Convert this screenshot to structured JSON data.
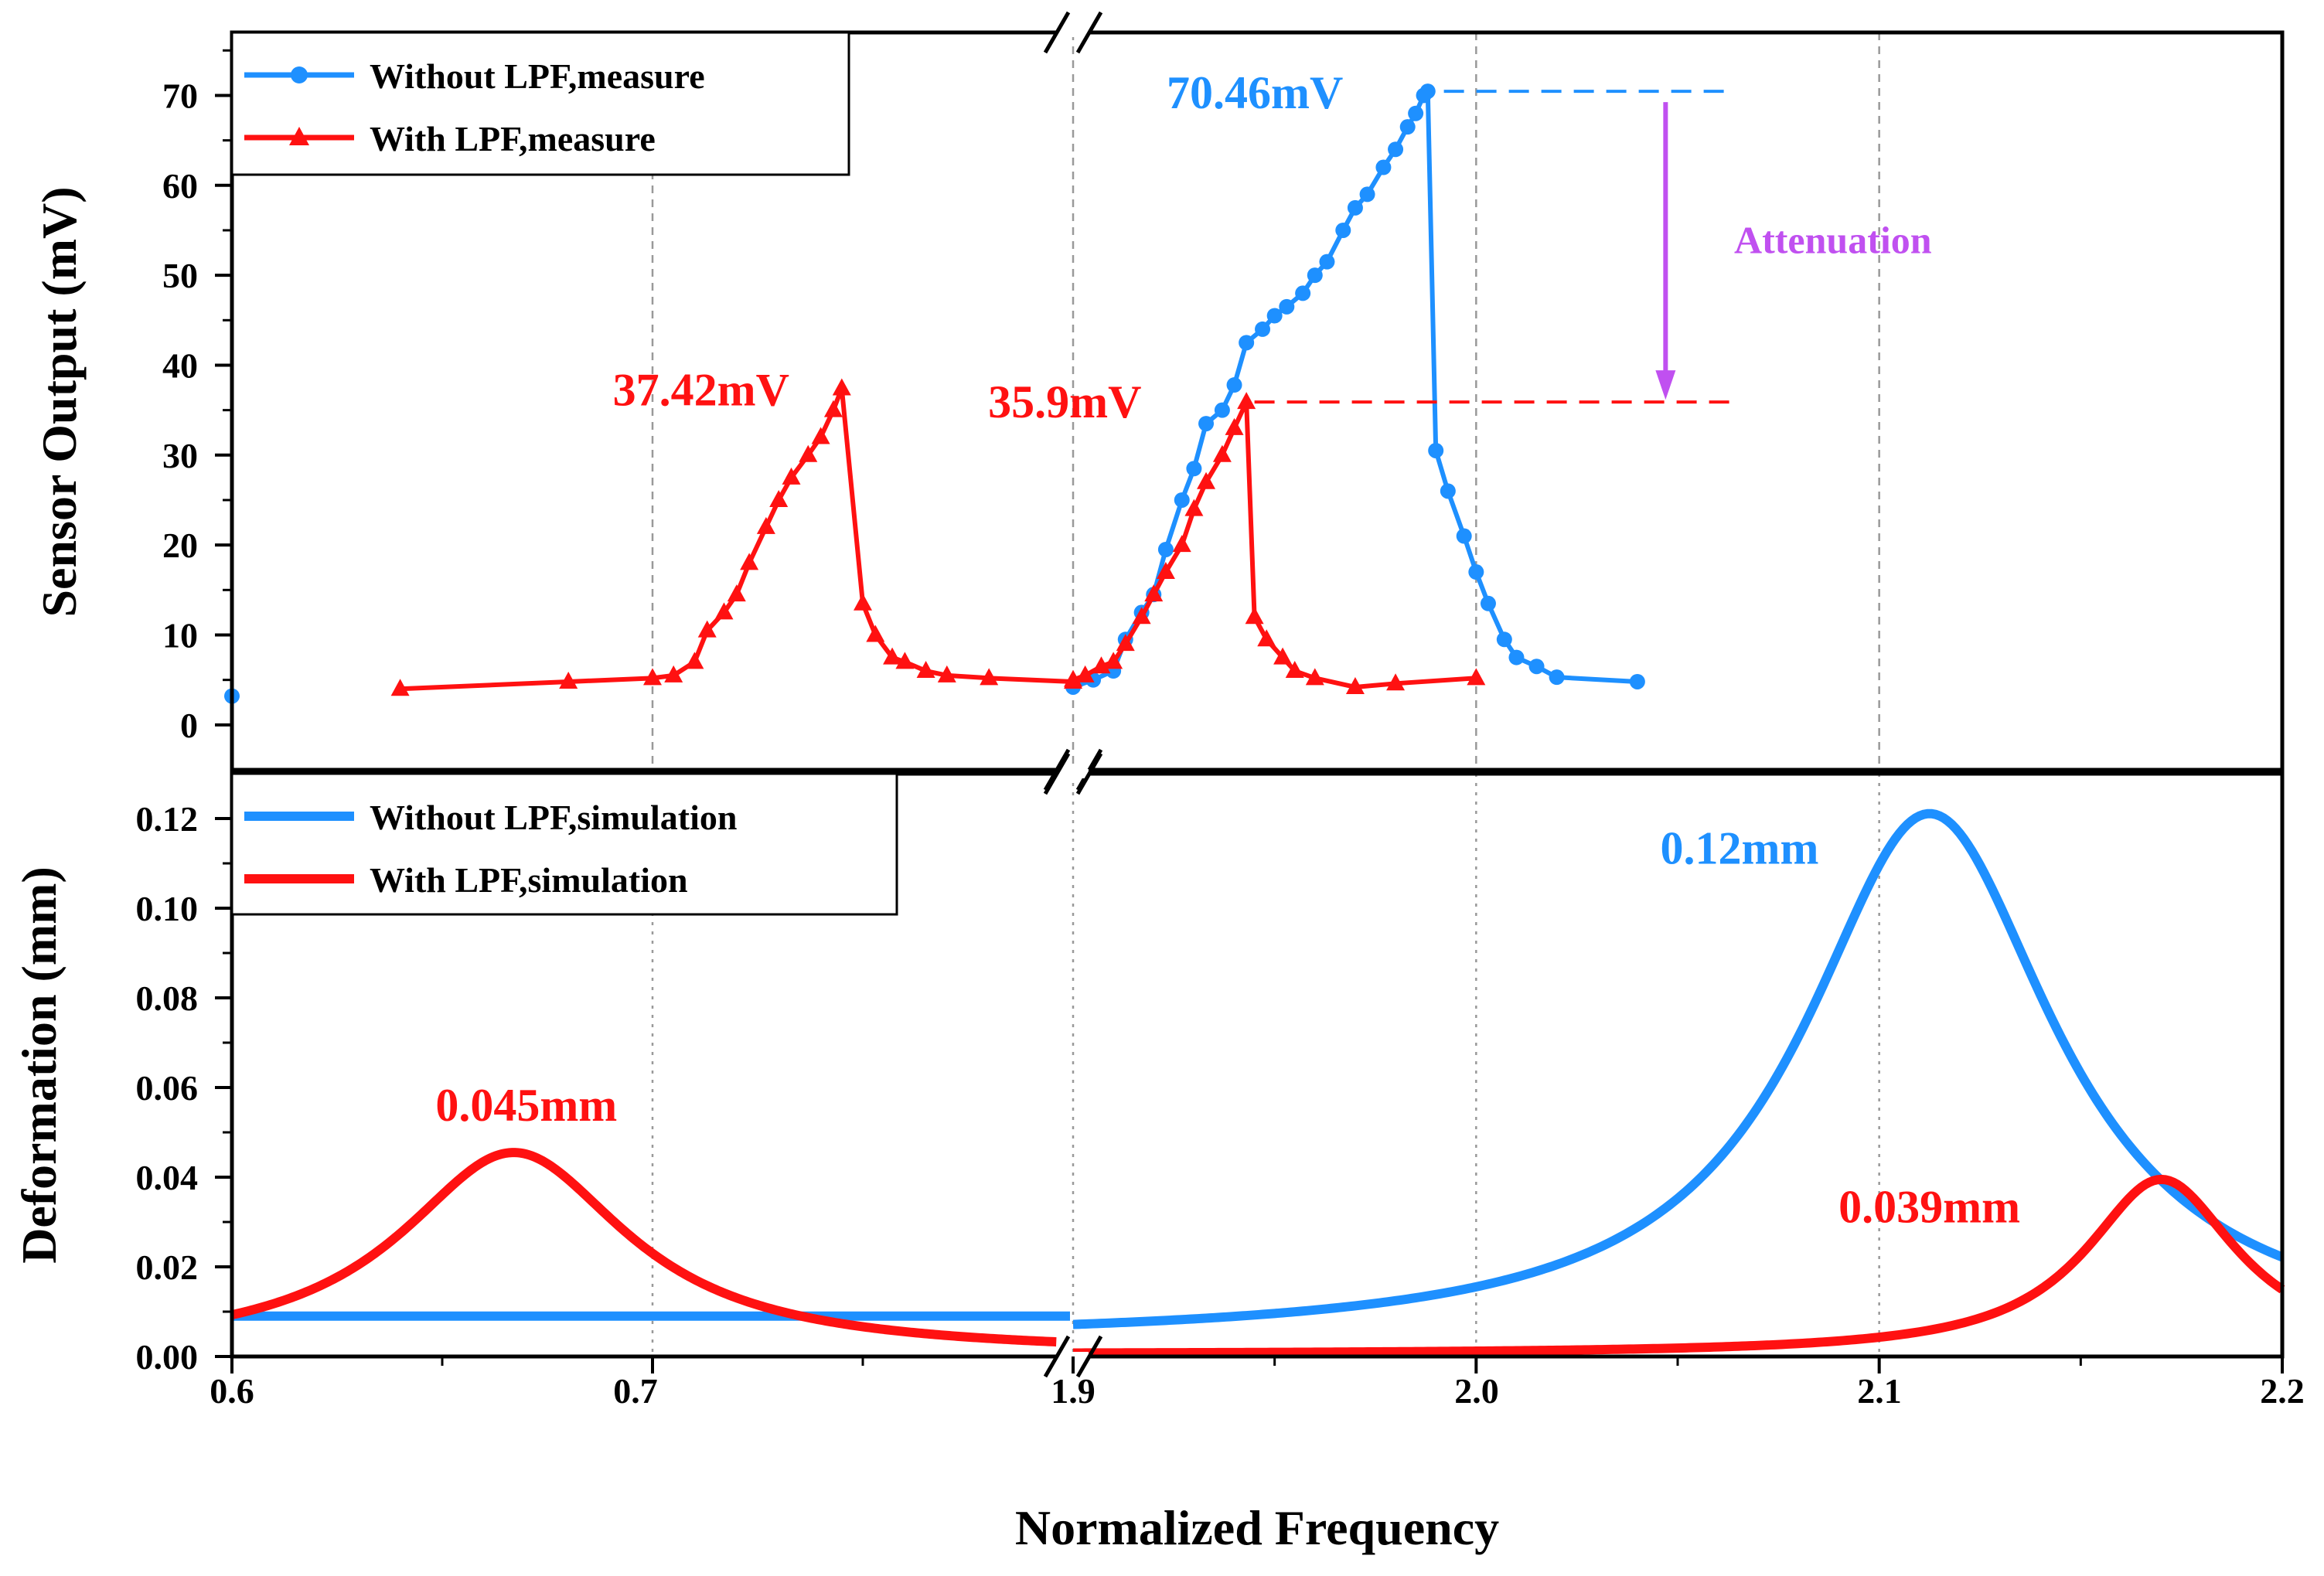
{
  "colors": {
    "blue": "#1e90ff",
    "red": "#ff1111",
    "purple": "#c050f0",
    "grid": "#999999"
  },
  "xlabel": "Normalized Frequency",
  "x_tick_labels": [
    "0.6",
    "0.7",
    "1.9",
    "2.0",
    "2.1",
    "2.2"
  ],
  "chart_data": [
    {
      "type": "line",
      "panel": "top",
      "ylabel": "Sensor Output (mV)",
      "ylim": [
        -5,
        77
      ],
      "y_ticks": [
        0,
        10,
        20,
        30,
        40,
        50,
        60,
        70
      ],
      "x_segments": [
        [
          0.6,
          0.7,
          0.8
        ],
        [
          1.9,
          2.0,
          2.1,
          2.2
        ]
      ],
      "series": [
        {
          "name": "Without LPF,measure",
          "color": "blue",
          "marker": "circle",
          "points": [
            [
              0.6,
              3.2
            ],
            [
              1.9,
              4.2
            ],
            [
              1.905,
              5.0
            ],
            [
              1.91,
              6.0
            ],
            [
              1.913,
              9.5
            ],
            [
              1.917,
              12.5
            ],
            [
              1.92,
              14.5
            ],
            [
              1.923,
              19.5
            ],
            [
              1.927,
              25.0
            ],
            [
              1.93,
              28.5
            ],
            [
              1.933,
              33.5
            ],
            [
              1.937,
              35.0
            ],
            [
              1.94,
              37.8
            ],
            [
              1.943,
              42.5
            ],
            [
              1.947,
              44.0
            ],
            [
              1.95,
              45.5
            ],
            [
              1.953,
              46.5
            ],
            [
              1.957,
              48.0
            ],
            [
              1.96,
              50.0
            ],
            [
              1.963,
              51.5
            ],
            [
              1.967,
              55.0
            ],
            [
              1.97,
              57.5
            ],
            [
              1.973,
              59.0
            ],
            [
              1.977,
              62.0
            ],
            [
              1.98,
              64.0
            ],
            [
              1.983,
              66.5
            ],
            [
              1.985,
              68.0
            ],
            [
              1.987,
              70.0
            ],
            [
              1.988,
              70.46
            ],
            [
              1.99,
              30.5
            ],
            [
              1.993,
              26.0
            ],
            [
              1.997,
              21.0
            ],
            [
              2.0,
              17.0
            ],
            [
              2.003,
              13.5
            ],
            [
              2.007,
              9.5
            ],
            [
              2.01,
              7.5
            ],
            [
              2.015,
              6.5
            ],
            [
              2.02,
              5.3
            ],
            [
              2.04,
              4.8
            ]
          ]
        },
        {
          "name": "With LPF,measure",
          "color": "red",
          "marker": "triangle",
          "points": [
            [
              0.64,
              4.0
            ],
            [
              0.68,
              4.8
            ],
            [
              0.7,
              5.2
            ],
            [
              0.705,
              5.5
            ],
            [
              0.71,
              7.0
            ],
            [
              0.713,
              10.5
            ],
            [
              0.717,
              12.5
            ],
            [
              0.72,
              14.5
            ],
            [
              0.723,
              18.0
            ],
            [
              0.727,
              22.0
            ],
            [
              0.73,
              25.0
            ],
            [
              0.733,
              27.5
            ],
            [
              0.737,
              30.0
            ],
            [
              0.74,
              32.0
            ],
            [
              0.743,
              35.0
            ],
            [
              0.745,
              37.42
            ],
            [
              0.75,
              13.5
            ],
            [
              0.753,
              10.0
            ],
            [
              0.757,
              7.5
            ],
            [
              0.76,
              7.0
            ],
            [
              0.765,
              6.0
            ],
            [
              0.77,
              5.5
            ],
            [
              0.78,
              5.2
            ],
            [
              0.8,
              4.8
            ],
            [
              1.9,
              5.0
            ],
            [
              1.903,
              5.5
            ],
            [
              1.907,
              6.5
            ],
            [
              1.91,
              7.0
            ],
            [
              1.913,
              9.0
            ],
            [
              1.917,
              12.0
            ],
            [
              1.92,
              14.5
            ],
            [
              1.923,
              17.0
            ],
            [
              1.927,
              20.0
            ],
            [
              1.93,
              24.0
            ],
            [
              1.933,
              27.0
            ],
            [
              1.937,
              30.0
            ],
            [
              1.94,
              33.0
            ],
            [
              1.943,
              35.9
            ],
            [
              1.945,
              12.0
            ],
            [
              1.948,
              9.5
            ],
            [
              1.952,
              7.5
            ],
            [
              1.955,
              6.0
            ],
            [
              1.96,
              5.2
            ],
            [
              1.97,
              4.2
            ],
            [
              1.98,
              4.6
            ],
            [
              2.0,
              5.2
            ]
          ]
        }
      ],
      "annotations": {
        "a1": {
          "text": "70.46mV",
          "x": 1.967,
          "y": 70.46,
          "color": "blue"
        },
        "a2": {
          "text": "37.42mV",
          "x": 0.734,
          "y": 37.42,
          "color": "red"
        },
        "a3": {
          "text": "35.9mV",
          "x": 1.935,
          "y": 35.9,
          "color": "red"
        },
        "a4": {
          "text": "Attenuation",
          "x": 2.064,
          "y": 54.0,
          "color": "purple"
        }
      },
      "ref_lines": [
        {
          "y": 70.46,
          "x_from": 1.992,
          "x_to": 2.064,
          "color": "blue"
        },
        {
          "y": 35.9,
          "x_from": 1.945,
          "x_to": 2.064,
          "color": "red"
        }
      ],
      "arrow": {
        "x": 2.047,
        "y_from": 70.46,
        "y_to": 36.5,
        "color": "purple"
      },
      "legend": [
        "Without LPF,measure",
        "With LPF,measure"
      ]
    },
    {
      "type": "line",
      "panel": "bottom",
      "ylabel": "Deformation (mm)",
      "ylim": [
        0,
        0.13
      ],
      "y_ticks": [
        "0.00",
        "0.02",
        "0.04",
        "0.06",
        "0.08",
        "0.10",
        "0.12"
      ],
      "series": [
        {
          "name": "Without LPF,simulation",
          "color": "blue",
          "peak": 0.12,
          "peak_x": 2.1125,
          "gamma": 0.038,
          "range": [
            1.9,
            2.2
          ],
          "flat_left": 0.009
        },
        {
          "name": "With LPF,simulation",
          "color": "red",
          "peaks": [
            {
              "value": 0.045,
              "x": 0.667,
              "gamma": 0.033,
              "range": [
                0.6,
                0.8
              ]
            },
            {
              "value": 0.039,
              "x": 2.17,
              "gamma": 0.023,
              "range": [
                1.9,
                2.2
              ]
            }
          ]
        }
      ],
      "annotations": {
        "b1": {
          "text": "0.12mm",
          "x": 2.085,
          "y": 0.113,
          "color": "blue"
        },
        "b2": {
          "text": "0.045mm",
          "x": 0.67,
          "y": 0.056,
          "color": "red"
        },
        "b3": {
          "text": "0.039mm",
          "x": 2.135,
          "y": 0.033,
          "color": "red"
        }
      },
      "legend": [
        "Without LPF,simulation",
        "With LPF,simulation"
      ]
    }
  ]
}
